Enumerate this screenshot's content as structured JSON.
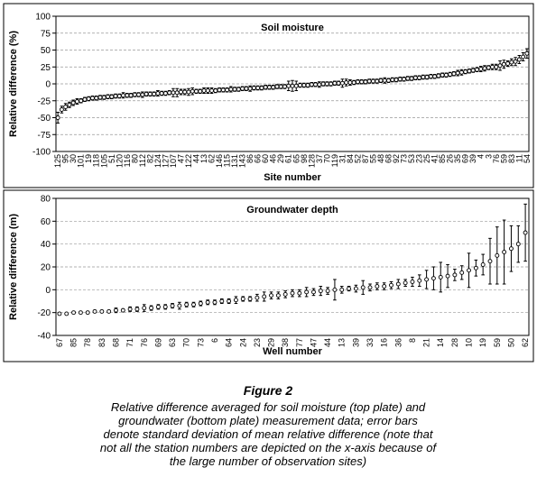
{
  "chart_data": [
    {
      "type": "errorbar",
      "title": "Soil moisture",
      "y_label": "Relative difference (%)",
      "x_label": "Site number",
      "categories": [
        "125",
        null,
        "95",
        null,
        "30",
        null,
        "101",
        null,
        "19",
        null,
        "118",
        null,
        "105",
        null,
        "51",
        null,
        "120",
        null,
        "116",
        null,
        "80",
        null,
        "112",
        null,
        "82",
        null,
        "124",
        null,
        "127",
        null,
        "107",
        null,
        "47",
        null,
        "122",
        null,
        "44",
        null,
        "13",
        null,
        "62",
        null,
        "146",
        null,
        "115",
        null,
        "131",
        null,
        "143",
        null,
        "86",
        null,
        "66",
        null,
        "60",
        null,
        "46",
        null,
        "29",
        null,
        "61",
        null,
        "65",
        null,
        "98",
        null,
        "128",
        null,
        "37",
        null,
        "70",
        null,
        "119",
        null,
        "31",
        null,
        "84",
        null,
        "52",
        null,
        "87",
        null,
        "55",
        null,
        "48",
        null,
        "68",
        null,
        "92",
        null,
        "73",
        null,
        "53",
        null,
        "23",
        null,
        "25",
        null,
        "41",
        null,
        "85",
        null,
        "26",
        null,
        "35",
        null,
        "69",
        null,
        "39",
        null,
        "4",
        null,
        "3",
        null,
        "76",
        null,
        "59",
        null,
        "83",
        null,
        "11",
        null,
        "54"
      ],
      "values": [
        -50,
        -38,
        -34,
        -31,
        -28,
        -26,
        -25,
        -23,
        -22,
        -21,
        -21,
        -20,
        -20,
        -19,
        -19,
        -18,
        -18,
        -17,
        -17,
        -17,
        -16,
        -16,
        -16,
        -15,
        -15,
        -15,
        -14,
        -14,
        -14,
        -13,
        -13,
        -13,
        -12,
        -12,
        -12,
        -11,
        -11,
        -11,
        -10,
        -10,
        -10,
        -10,
        -9,
        -9,
        -9,
        -8,
        -8,
        -8,
        -7,
        -7,
        -7,
        -6,
        -6,
        -6,
        -5,
        -5,
        -5,
        -4,
        -4,
        -4,
        -3,
        -3,
        -3,
        -2,
        -2,
        -2,
        -1,
        -1,
        -1,
        0,
        0,
        0,
        1,
        1,
        1,
        2,
        2,
        2,
        3,
        3,
        3,
        4,
        4,
        4,
        5,
        5,
        5,
        6,
        6,
        7,
        7,
        8,
        8,
        9,
        9,
        10,
        10,
        11,
        11,
        12,
        13,
        13,
        14,
        15,
        16,
        17,
        18,
        19,
        20,
        21,
        22,
        23,
        24,
        25,
        25,
        27,
        29,
        30,
        32,
        33,
        36,
        40,
        45
      ],
      "errors": [
        8,
        5,
        5,
        4,
        4,
        4,
        3,
        3,
        3,
        3,
        3,
        3,
        3,
        3,
        3,
        3,
        3,
        4,
        3,
        3,
        3,
        3,
        4,
        3,
        3,
        3,
        4,
        3,
        3,
        3,
        6,
        6,
        4,
        4,
        5,
        5,
        3,
        3,
        4,
        4,
        4,
        3,
        3,
        3,
        3,
        4,
        3,
        3,
        3,
        3,
        4,
        3,
        3,
        3,
        3,
        3,
        3,
        3,
        3,
        3,
        7,
        8,
        7,
        3,
        3,
        3,
        3,
        3,
        4,
        3,
        3,
        3,
        3,
        3,
        6,
        5,
        4,
        3,
        3,
        3,
        3,
        3,
        3,
        3,
        3,
        4,
        3,
        3,
        3,
        3,
        3,
        3,
        3,
        3,
        3,
        3,
        3,
        3,
        3,
        3,
        3,
        3,
        3,
        3,
        4,
        4,
        3,
        3,
        3,
        3,
        4,
        4,
        3,
        4,
        4,
        7,
        6,
        4,
        5,
        6,
        6,
        6,
        7
      ],
      "ylim": [
        -100,
        100
      ],
      "yticks": [
        -100,
        -75,
        -50,
        -25,
        0,
        25,
        50,
        75,
        100
      ],
      "grid": true,
      "color": "#000000"
    },
    {
      "type": "errorbar",
      "title": "Groundwater depth",
      "y_label": "Relative difference (m)",
      "x_label": "Well number",
      "categories": [
        "67",
        null,
        "85",
        null,
        "78",
        null,
        "83",
        null,
        "68",
        null,
        "71",
        null,
        "76",
        null,
        "69",
        null,
        "63",
        null,
        "70",
        null,
        "73",
        null,
        "6",
        null,
        "64",
        null,
        "24",
        null,
        "23",
        null,
        "29",
        null,
        "38",
        null,
        "77",
        null,
        "47",
        null,
        "44",
        null,
        "13",
        null,
        "39",
        null,
        "33",
        null,
        "16",
        null,
        "36",
        null,
        "8",
        null,
        "21",
        null,
        "14",
        null,
        "28",
        null,
        "10",
        null,
        "19",
        null,
        "59",
        null,
        "50",
        null,
        "62"
      ],
      "values": [
        -21,
        -21,
        -20,
        -20,
        -20,
        -19,
        -19,
        -19,
        -18,
        -18,
        -17,
        -17,
        -16,
        -16,
        -15,
        -15,
        -14,
        -14,
        -13,
        -13,
        -12,
        -11,
        -11,
        -10,
        -10,
        -9,
        -8,
        -8,
        -7,
        -6,
        -5,
        -5,
        -4,
        -3,
        -3,
        -2,
        -2,
        -1,
        -1,
        0,
        0,
        1,
        1,
        2,
        2,
        3,
        3,
        4,
        5,
        6,
        7,
        8,
        9,
        10,
        11,
        12,
        13,
        15,
        17,
        19,
        22,
        25,
        30,
        33,
        36,
        40,
        50
      ],
      "errors": [
        1,
        1,
        1,
        1,
        1,
        1,
        1,
        1,
        2,
        1,
        2,
        2,
        3,
        2,
        2,
        2,
        2,
        3,
        2,
        2,
        2,
        2,
        2,
        2,
        2,
        3,
        2,
        2,
        3,
        4,
        3,
        3,
        3,
        3,
        3,
        4,
        3,
        4,
        3,
        9,
        3,
        2,
        3,
        6,
        3,
        3,
        3,
        3,
        4,
        3,
        4,
        5,
        8,
        10,
        13,
        10,
        5,
        6,
        15,
        7,
        9,
        20,
        25,
        28,
        20,
        16,
        25
      ],
      "ylim": [
        -40,
        80
      ],
      "yticks": [
        -40,
        -20,
        0,
        20,
        40,
        60,
        80
      ],
      "grid": true,
      "color": "#000000"
    }
  ],
  "caption": {
    "figure": "Figure 2",
    "lines": [
      "Relative difference averaged for soil moisture (top plate) and",
      "groundwater (bottom plate) measurement data; error bars",
      "denote standard deviation of mean relative difference (note that",
      "not all the station numbers are depicted on the x-axis because of",
      "the large number of observation sites)"
    ]
  }
}
